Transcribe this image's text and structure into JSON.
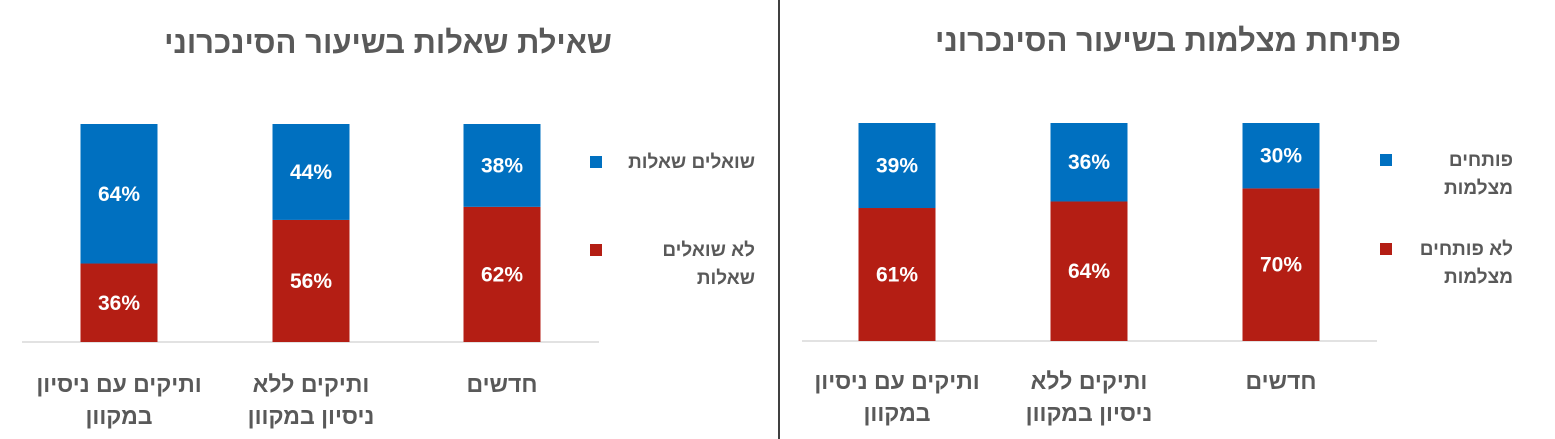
{
  "colors": {
    "series_1": "#0070C0",
    "series_2": "#B41E14",
    "divider": "#000000",
    "axis": "#D9D9D9",
    "title": "#595959"
  },
  "chart_data": [
    {
      "type": "bar",
      "stacked": true,
      "title": "שאילת שאלות בשיעור הסינכרוני",
      "categories": [
        [
          "ותיקים עם ניסיון",
          "במקוון"
        ],
        [
          "ותיקים ללא",
          "ניסיון במקוון"
        ],
        [
          "חדשים"
        ]
      ],
      "series": [
        {
          "name": [
            "לא שואלים",
            "שאלות"
          ],
          "values": [
            36,
            56,
            62
          ],
          "labels": [
            "36%",
            "56%",
            "62%"
          ]
        },
        {
          "name": [
            "שואלים שאלות"
          ],
          "values": [
            64,
            44,
            38
          ],
          "labels": [
            "64%",
            "44%",
            "38%"
          ]
        }
      ],
      "ylim": [
        0,
        100
      ],
      "legend": "right"
    },
    {
      "type": "bar",
      "stacked": true,
      "title": "פתיחת מצלמות בשיעור הסינכרוני",
      "categories": [
        [
          "ותיקים עם ניסיון",
          "במקוון"
        ],
        [
          "ותיקים ללא",
          "ניסיון במקוון"
        ],
        [
          "חדשים"
        ]
      ],
      "series": [
        {
          "name": [
            "לא פותחים",
            "מצלמות"
          ],
          "values": [
            61,
            64,
            70
          ],
          "labels": [
            "61%",
            "64%",
            "70%"
          ]
        },
        {
          "name": [
            "פותחים",
            "מצלמות"
          ],
          "values": [
            39,
            36,
            30
          ],
          "labels": [
            "39%",
            "36%",
            "30%"
          ]
        }
      ],
      "ylim": [
        0,
        100
      ],
      "legend": "right"
    }
  ]
}
